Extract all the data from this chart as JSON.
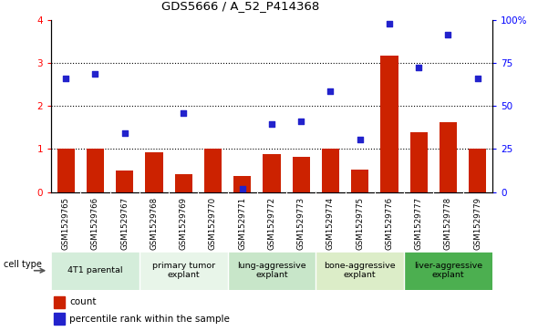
{
  "title": "GDS5666 / A_52_P414368",
  "samples": [
    "GSM1529765",
    "GSM1529766",
    "GSM1529767",
    "GSM1529768",
    "GSM1529769",
    "GSM1529770",
    "GSM1529771",
    "GSM1529772",
    "GSM1529773",
    "GSM1529774",
    "GSM1529775",
    "GSM1529776",
    "GSM1529777",
    "GSM1529778",
    "GSM1529779"
  ],
  "counts": [
    1.0,
    1.0,
    0.5,
    0.93,
    0.42,
    1.0,
    0.38,
    0.88,
    0.82,
    1.0,
    0.52,
    3.17,
    1.38,
    1.62,
    1.0
  ],
  "percentile_ranks": [
    66.0,
    68.8,
    34.4,
    null,
    45.6,
    null,
    2.0,
    39.5,
    41.2,
    58.8,
    30.6,
    97.9,
    72.1,
    91.2,
    66.0
  ],
  "group_labels": [
    "4T1 parental",
    "primary tumor\nexplant",
    "lung-aggressive\nexplant",
    "bone-aggressive\nexplant",
    "liver-aggressive\nexplant"
  ],
  "group_ranges": [
    [
      0,
      2
    ],
    [
      3,
      5
    ],
    [
      6,
      8
    ],
    [
      9,
      11
    ],
    [
      12,
      14
    ]
  ],
  "group_colors": [
    "#d4edda",
    "#e8f5e9",
    "#c8e6c9",
    "#dcedc8",
    "#4caf50"
  ],
  "ylim_left": [
    0,
    4
  ],
  "ylim_right": [
    0,
    100
  ],
  "bar_color": "#cc2200",
  "dot_color": "#2222cc",
  "sample_bg_color": "#cccccc",
  "legend_count_label": "count",
  "legend_pct_label": "percentile rank within the sample",
  "cell_type_label": "cell type"
}
